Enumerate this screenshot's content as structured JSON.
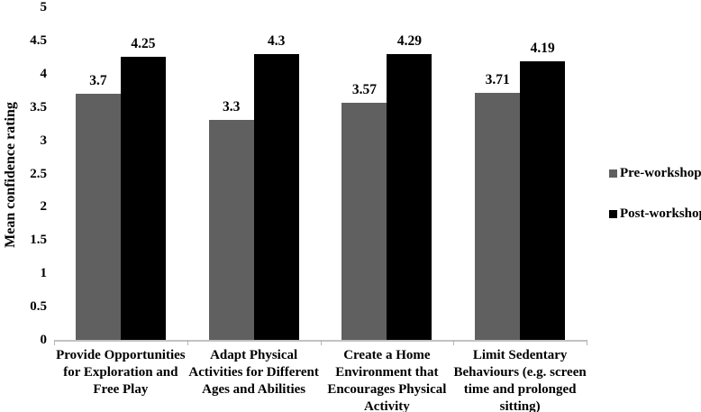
{
  "chart_data": {
    "type": "bar",
    "title": "",
    "xlabel": "",
    "ylabel": "Mean confidence rating",
    "ylim": [
      0,
      5
    ],
    "ytick_step": 0.5,
    "yticks": [
      "0",
      "0.5",
      "1",
      "1.5",
      "2",
      "2.5",
      "3",
      "3.5",
      "4",
      "4.5",
      "5"
    ],
    "grid": false,
    "legend_position": "right-middle",
    "categories": [
      "Provide Opportunities\nfor Exploration and\nFree Play",
      "Adapt Physical\nActivities for Different\nAges and Abilities",
      "Create a Home\nEnvironment that\nEncourages Physical\nActivity",
      "Limit Sedentary\nBehaviours (e.g. screen\ntime and prolonged\nsitting)"
    ],
    "series": [
      {
        "name": "Pre-workshop",
        "color": "#606060",
        "values": [
          3.7,
          3.3,
          3.57,
          3.71
        ],
        "labels": [
          "3.7",
          "3.3",
          "3.57",
          "3.71"
        ]
      },
      {
        "name": "Post-workshop",
        "color": "#000000",
        "values": [
          4.25,
          4.3,
          4.29,
          4.19
        ],
        "labels": [
          "4.25",
          "4.3",
          "4.29",
          "4.19"
        ]
      }
    ],
    "colors": {
      "axis_line": "#c2c2c2",
      "text": "#000000",
      "background": "#ffffff"
    }
  }
}
